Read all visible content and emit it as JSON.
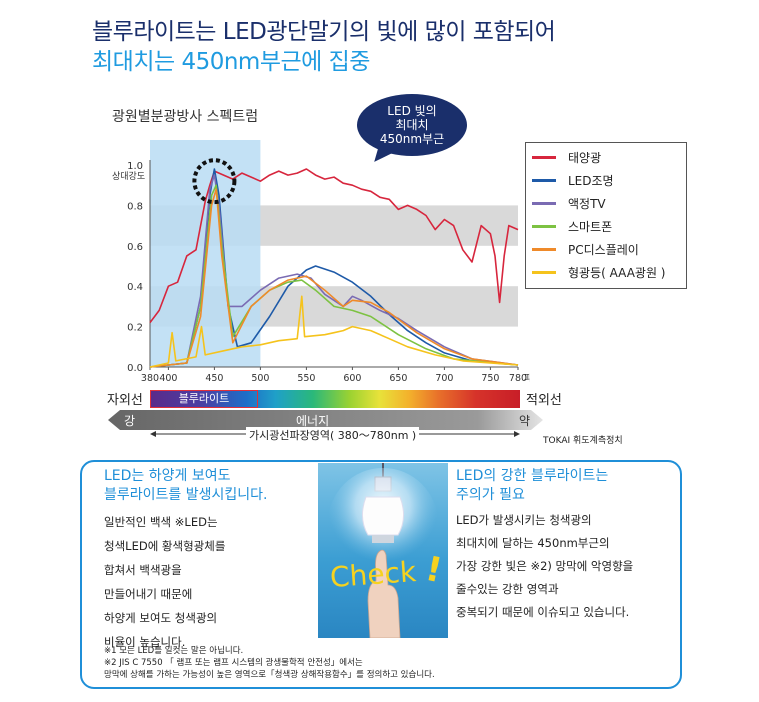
{
  "header": {
    "title_line1": "블루라이트는 LED광단말기의 빛에 많이 포함되어",
    "title_line2": "최대치는 450nm부근에 집중"
  },
  "callout": {
    "line1": "LED 빛의",
    "line2": "최대치",
    "line3": "450nm부근"
  },
  "chart_data": {
    "type": "line",
    "title": "광원별분광방사 스펙트럼",
    "xlabel": "파장( nm )",
    "ylabel": "상대강도",
    "xlim": [
      380,
      780
    ],
    "ylim": [
      0,
      1.0
    ],
    "x_ticks": [
      "380",
      "400",
      "450",
      "500",
      "550",
      "600",
      "650",
      "700",
      "750",
      "780"
    ],
    "y_ticks": [
      "0.0",
      "0.2",
      "0.4",
      "0.6",
      "0.8",
      "1.0"
    ],
    "grid": "horizontal bands",
    "legend_position": "right",
    "highlight_region": [
      380,
      500
    ],
    "series": [
      {
        "name": "태양광",
        "color": "#d7263d",
        "points": [
          [
            380,
            0.22
          ],
          [
            390,
            0.28
          ],
          [
            400,
            0.4
          ],
          [
            410,
            0.42
          ],
          [
            420,
            0.55
          ],
          [
            430,
            0.58
          ],
          [
            440,
            0.82
          ],
          [
            445,
            0.9
          ],
          [
            450,
            0.97
          ],
          [
            460,
            0.95
          ],
          [
            470,
            0.93
          ],
          [
            480,
            0.96
          ],
          [
            490,
            0.94
          ],
          [
            500,
            0.92
          ],
          [
            510,
            0.95
          ],
          [
            520,
            0.97
          ],
          [
            530,
            0.95
          ],
          [
            540,
            0.96
          ],
          [
            550,
            0.98
          ],
          [
            560,
            0.95
          ],
          [
            570,
            0.93
          ],
          [
            580,
            0.94
          ],
          [
            590,
            0.91
          ],
          [
            600,
            0.9
          ],
          [
            610,
            0.88
          ],
          [
            620,
            0.87
          ],
          [
            630,
            0.84
          ],
          [
            640,
            0.83
          ],
          [
            650,
            0.78
          ],
          [
            660,
            0.8
          ],
          [
            670,
            0.78
          ],
          [
            680,
            0.75
          ],
          [
            690,
            0.68
          ],
          [
            700,
            0.73
          ],
          [
            710,
            0.7
          ],
          [
            720,
            0.58
          ],
          [
            730,
            0.52
          ],
          [
            740,
            0.7
          ],
          [
            750,
            0.66
          ],
          [
            755,
            0.55
          ],
          [
            760,
            0.32
          ],
          [
            765,
            0.55
          ],
          [
            770,
            0.7
          ],
          [
            780,
            0.68
          ]
        ]
      },
      {
        "name": "LED조명",
        "color": "#1e5aa8",
        "points": [
          [
            380,
            0
          ],
          [
            420,
            0.02
          ],
          [
            435,
            0.3
          ],
          [
            445,
            0.85
          ],
          [
            450,
            0.98
          ],
          [
            455,
            0.85
          ],
          [
            465,
            0.3
          ],
          [
            475,
            0.1
          ],
          [
            490,
            0.12
          ],
          [
            510,
            0.25
          ],
          [
            530,
            0.4
          ],
          [
            550,
            0.48
          ],
          [
            560,
            0.5
          ],
          [
            580,
            0.47
          ],
          [
            600,
            0.42
          ],
          [
            620,
            0.35
          ],
          [
            640,
            0.26
          ],
          [
            660,
            0.18
          ],
          [
            680,
            0.12
          ],
          [
            700,
            0.07
          ],
          [
            730,
            0.03
          ],
          [
            780,
            0.01
          ]
        ]
      },
      {
        "name": "액정TV",
        "color": "#7a6bb3",
        "points": [
          [
            380,
            0
          ],
          [
            420,
            0.02
          ],
          [
            435,
            0.35
          ],
          [
            445,
            0.88
          ],
          [
            450,
            0.95
          ],
          [
            455,
            0.8
          ],
          [
            465,
            0.3
          ],
          [
            480,
            0.3
          ],
          [
            500,
            0.38
          ],
          [
            520,
            0.44
          ],
          [
            540,
            0.46
          ],
          [
            555,
            0.44
          ],
          [
            570,
            0.36
          ],
          [
            590,
            0.3
          ],
          [
            600,
            0.35
          ],
          [
            610,
            0.33
          ],
          [
            630,
            0.28
          ],
          [
            650,
            0.24
          ],
          [
            670,
            0.18
          ],
          [
            700,
            0.1
          ],
          [
            730,
            0.04
          ],
          [
            780,
            0.01
          ]
        ]
      },
      {
        "name": "스마트폰",
        "color": "#7dc242",
        "points": [
          [
            380,
            0
          ],
          [
            420,
            0.02
          ],
          [
            435,
            0.3
          ],
          [
            447,
            0.85
          ],
          [
            452,
            0.9
          ],
          [
            458,
            0.6
          ],
          [
            470,
            0.15
          ],
          [
            490,
            0.3
          ],
          [
            510,
            0.38
          ],
          [
            530,
            0.42
          ],
          [
            545,
            0.43
          ],
          [
            560,
            0.38
          ],
          [
            580,
            0.3
          ],
          [
            600,
            0.28
          ],
          [
            620,
            0.25
          ],
          [
            650,
            0.16
          ],
          [
            680,
            0.09
          ],
          [
            710,
            0.04
          ],
          [
            780,
            0.01
          ]
        ]
      },
      {
        "name": "PC디스플레이",
        "color": "#ef8a2a",
        "points": [
          [
            380,
            0
          ],
          [
            420,
            0.02
          ],
          [
            435,
            0.25
          ],
          [
            447,
            0.8
          ],
          [
            452,
            0.88
          ],
          [
            458,
            0.55
          ],
          [
            470,
            0.12
          ],
          [
            490,
            0.3
          ],
          [
            510,
            0.38
          ],
          [
            530,
            0.43
          ],
          [
            550,
            0.45
          ],
          [
            570,
            0.38
          ],
          [
            590,
            0.3
          ],
          [
            600,
            0.33
          ],
          [
            620,
            0.32
          ],
          [
            640,
            0.27
          ],
          [
            670,
            0.17
          ],
          [
            700,
            0.09
          ],
          [
            730,
            0.04
          ],
          [
            780,
            0.01
          ]
        ]
      },
      {
        "name": "형광등( AAA광원 )",
        "color": "#f5c31c",
        "points": [
          [
            380,
            0
          ],
          [
            400,
            0.02
          ],
          [
            404,
            0.17
          ],
          [
            408,
            0.03
          ],
          [
            430,
            0.05
          ],
          [
            436,
            0.2
          ],
          [
            440,
            0.06
          ],
          [
            460,
            0.08
          ],
          [
            480,
            0.1
          ],
          [
            500,
            0.11
          ],
          [
            520,
            0.13
          ],
          [
            540,
            0.14
          ],
          [
            545,
            0.35
          ],
          [
            548,
            0.15
          ],
          [
            570,
            0.16
          ],
          [
            580,
            0.17
          ],
          [
            590,
            0.18
          ],
          [
            600,
            0.2
          ],
          [
            620,
            0.18
          ],
          [
            640,
            0.14
          ],
          [
            660,
            0.1
          ],
          [
            690,
            0.06
          ],
          [
            720,
            0.03
          ],
          [
            780,
            0.01
          ]
        ]
      }
    ]
  },
  "spectrum": {
    "uv_label": "자외선",
    "ir_label": "적외선",
    "bluelight_label": "블루라이트",
    "energy_strong": "강",
    "energy_label": "에너지",
    "energy_weak": "약",
    "visible_range": "가시광선파장영역( 380～780nm )",
    "credit": "TOKAI 휘도계측정치"
  },
  "info": {
    "left_head_1": "LED는 하양게 보여도",
    "left_head_2": "블루라이트를 발생시킵니다.",
    "left_body": [
      "일반적인 백색 ※LED는",
      "청색LED에 황색형광체를",
      "합쳐서 백색광을",
      "만들어내기 때문에",
      "하양게 보여도 청색광의",
      "비율이 높습니다."
    ],
    "check_text": "Check",
    "check_mark": "!",
    "right_head_1": "LED의 강한 블루라이트는",
    "right_head_2": "주의가 필요",
    "right_body": [
      "LED가 발생시키는 청색광의",
      "최대치에 달하는 450nm부근의",
      "가장 강한 빛은 ※2) 망막에 악영향을",
      "줄수있는 강한 영역과",
      "중복되기 때문에 이슈되고 있습니다."
    ],
    "footnote1": "※1 모든 LED를 일컷는 말은 아닙니다.",
    "footnote2": "※2 JIS C 7550 「 램프 또는 램프 시스템의 광생물학적 안전성」에서는",
    "footnote3": "망막에 상해를 가하는 가능성이 높은 영역으로「청색광 상해작용함수」를 정의하고 있습니다."
  }
}
